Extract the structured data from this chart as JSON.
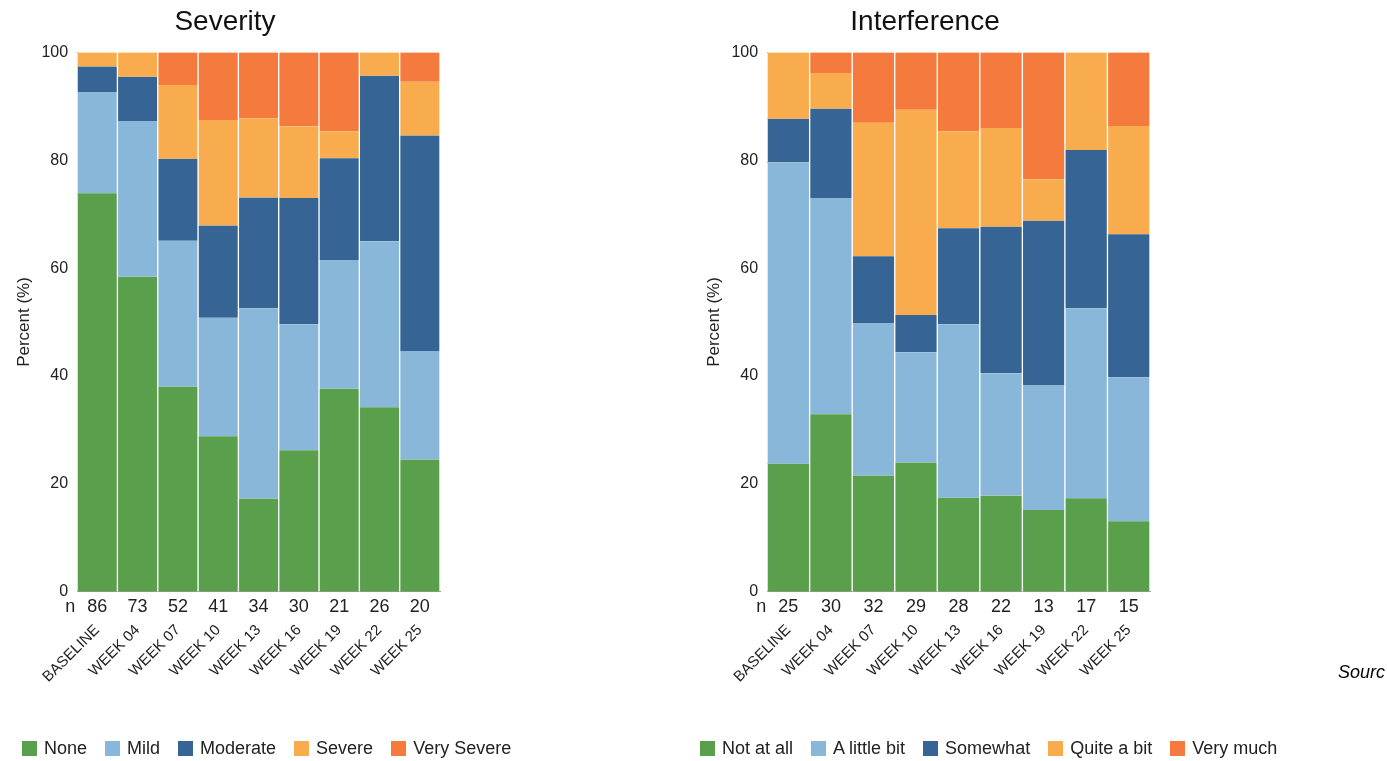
{
  "chart_data": [
    {
      "type": "bar",
      "title": "Severity",
      "ylabel": "Percent (%)",
      "stacked": true,
      "legend": "bottom",
      "categories": [
        "BASELINE",
        "WEEK 04",
        "WEEK 07",
        "WEEK 10",
        "WEEK 13",
        "WEEK 16",
        "WEEK 19",
        "WEEK 22",
        "WEEK 25"
      ],
      "series": [
        {
          "name": "None",
          "color": "#5aa04c",
          "values": [
            73.9,
            58.4,
            38.0,
            28.8,
            17.2,
            26.2,
            37.6,
            34.2,
            24.5
          ]
        },
        {
          "name": "Mild",
          "color": "#89b7d9",
          "values": [
            18.8,
            28.9,
            27.1,
            22.0,
            35.3,
            23.4,
            23.9,
            30.8,
            20.1
          ]
        },
        {
          "name": "Moderate",
          "color": "#366494",
          "values": [
            4.7,
            8.2,
            15.2,
            17.1,
            20.6,
            23.4,
            18.9,
            30.7,
            40.0
          ]
        },
        {
          "name": "Severe",
          "color": "#f9ac4e",
          "values": [
            2.6,
            4.5,
            13.7,
            19.6,
            14.7,
            13.3,
            5.0,
            4.3,
            10.0
          ]
        },
        {
          "name": "Very Severe",
          "color": "#f47a3e",
          "values": [
            0,
            0,
            6.0,
            12.5,
            12.2,
            13.7,
            14.6,
            0,
            5.4
          ]
        }
      ],
      "ylim": [
        0,
        100
      ],
      "yticks": [
        0,
        20,
        40,
        60,
        80,
        100
      ],
      "grid": false,
      "annotations": [
        "n",
        "86",
        "73",
        "52",
        "41",
        "34",
        "30",
        "21",
        "26",
        "20"
      ]
    },
    {
      "type": "bar",
      "title": "Interference",
      "ylabel": "Percent (%)",
      "stacked": true,
      "legend": "bottom",
      "categories": [
        "BASELINE",
        "WEEK 04",
        "WEEK 07",
        "WEEK 10",
        "WEEK 13",
        "WEEK 16",
        "WEEK 19",
        "WEEK 22",
        "WEEK 25"
      ],
      "series": [
        {
          "name": "Not at all",
          "color": "#5aa04c",
          "values": [
            23.7,
            32.9,
            21.5,
            23.9,
            17.4,
            17.8,
            15.1,
            17.3,
            13.0
          ]
        },
        {
          "name": "A little bit",
          "color": "#89b7d9",
          "values": [
            55.9,
            40.1,
            28.2,
            20.5,
            32.2,
            22.7,
            23.1,
            35.2,
            26.7
          ]
        },
        {
          "name": "Somewhat",
          "color": "#366494",
          "values": [
            8.1,
            16.6,
            12.5,
            6.9,
            17.8,
            27.2,
            30.6,
            29.4,
            26.6
          ]
        },
        {
          "name": "Quite a bit",
          "color": "#f9ac4e",
          "values": [
            12.3,
            6.6,
            24.8,
            38.1,
            18.0,
            18.3,
            7.7,
            18.1,
            20.1
          ]
        },
        {
          "name": "Very much",
          "color": "#f47a3e",
          "values": [
            0,
            3.8,
            13.0,
            10.6,
            14.6,
            14.0,
            23.5,
            0,
            13.6
          ]
        }
      ],
      "ylim": [
        0,
        100
      ],
      "yticks": [
        0,
        20,
        40,
        60,
        80,
        100
      ],
      "grid": false,
      "annotations": [
        "n",
        "25",
        "30",
        "32",
        "29",
        "28",
        "22",
        "13",
        "17",
        "15",
        "Sourc"
      ]
    }
  ]
}
